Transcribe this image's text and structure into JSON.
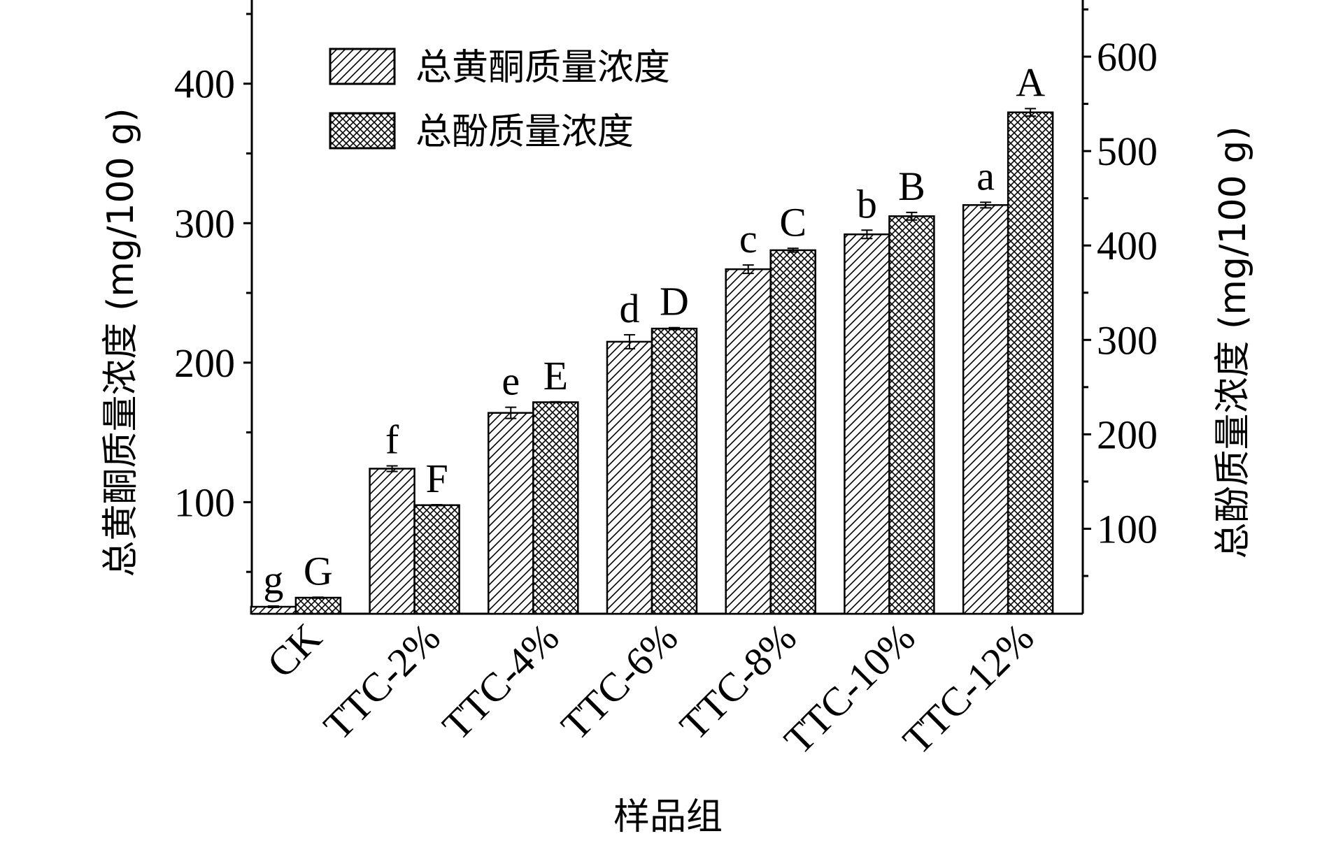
{
  "chart_data": {
    "type": "bar",
    "categories": [
      "CK",
      "TTC-2%",
      "TTC-4%",
      "TTC-6%",
      "TTC-8%",
      "TTC-10%",
      "TTC-12%"
    ],
    "xlabel": "样品组",
    "ylabel": "总黄酮质量浓度 (mg/100 g)",
    "y2label": "总酚质量浓度 (mg/100 g)",
    "ylim": [
      20,
      460
    ],
    "y2lim": [
      10,
      660
    ],
    "yticks": [
      100,
      200,
      300,
      400
    ],
    "y2ticks": [
      100,
      200,
      300,
      400,
      500,
      600
    ],
    "grid": false,
    "legend_position": "top-left",
    "series": [
      {
        "name": "总黄酮质量浓度",
        "axis": "left",
        "pattern": "diagonal-lines",
        "values": [
          25,
          124,
          164,
          215,
          267,
          292,
          313
        ],
        "errors": [
          0.5,
          2,
          4,
          5,
          3,
          3,
          2
        ],
        "labels": [
          "g",
          "f",
          "e",
          "d",
          "c",
          "b",
          "a"
        ]
      },
      {
        "name": "总酚质量浓度",
        "axis": "right",
        "pattern": "crosshatch",
        "values": [
          27,
          125,
          234,
          312,
          395,
          431,
          541
        ],
        "errors": [
          0.5,
          0.5,
          0.5,
          1,
          2,
          4,
          4
        ],
        "labels": [
          "G",
          "F",
          "E",
          "D",
          "C",
          "B",
          "A"
        ]
      }
    ]
  }
}
